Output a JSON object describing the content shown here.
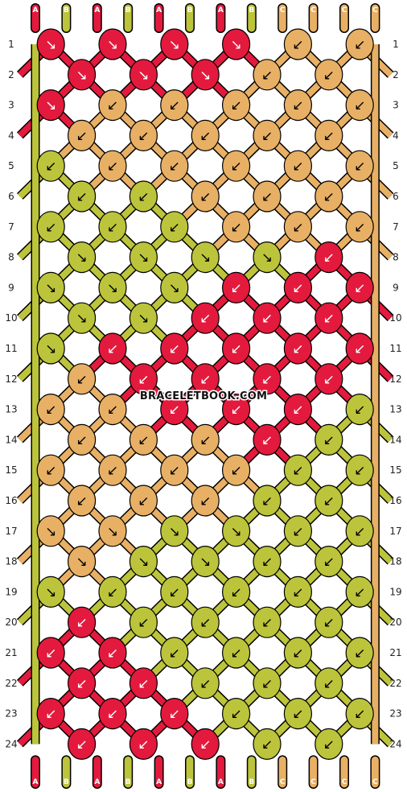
{
  "watermark": "BRACELETBOOK.COM",
  "colors": {
    "A": "#e31a3d",
    "B": "#bcc43b",
    "C": "#e8b065"
  },
  "top_strings": [
    "A",
    "B",
    "A",
    "B",
    "A",
    "B",
    "A",
    "B",
    "C",
    "C",
    "C",
    "C"
  ],
  "bottom_strings": [
    "A",
    "B",
    "A",
    "B",
    "A",
    "B",
    "A",
    "B",
    "C",
    "C",
    "C",
    "C"
  ],
  "row_numbers": [
    "1",
    "2",
    "3",
    "4",
    "5",
    "6",
    "7",
    "8",
    "9",
    "10",
    "11",
    "12",
    "13",
    "14",
    "15",
    "16",
    "17",
    "18",
    "19",
    "20",
    "21",
    "22",
    "23",
    "24"
  ],
  "knot_rows": [
    [
      "A",
      "A",
      "A",
      "A",
      "C",
      "C"
    ],
    [
      "A",
      "A",
      "A",
      "C",
      "C"
    ],
    [
      "A",
      "C",
      "C",
      "C",
      "C",
      "C"
    ],
    [
      "C",
      "C",
      "C",
      "C",
      "C"
    ],
    [
      "B",
      "C",
      "C",
      "C",
      "C",
      "C"
    ],
    [
      "B",
      "B",
      "C",
      "C",
      "C"
    ],
    [
      "B",
      "B",
      "B",
      "C",
      "C",
      "C"
    ],
    [
      "B",
      "B",
      "B",
      "B",
      "A"
    ],
    [
      "B",
      "B",
      "B",
      "A",
      "A",
      "A"
    ],
    [
      "B",
      "B",
      "A",
      "A",
      "A"
    ],
    [
      "B",
      "A",
      "A",
      "A",
      "A",
      "A"
    ],
    [
      "C",
      "A",
      "A",
      "A",
      "A"
    ],
    [
      "C",
      "C",
      "A",
      "A",
      "A",
      "B"
    ],
    [
      "C",
      "C",
      "C",
      "A",
      "B"
    ],
    [
      "C",
      "C",
      "C",
      "C",
      "B",
      "B"
    ],
    [
      "C",
      "C",
      "C",
      "B",
      "B"
    ],
    [
      "C",
      "C",
      "B",
      "B",
      "B",
      "B"
    ],
    [
      "C",
      "B",
      "B",
      "B",
      "B"
    ],
    [
      "B",
      "B",
      "B",
      "B",
      "B",
      "B"
    ],
    [
      "A",
      "B",
      "B",
      "B",
      "B"
    ],
    [
      "A",
      "A",
      "B",
      "B",
      "B",
      "B"
    ],
    [
      "A",
      "A",
      "B",
      "B",
      "B"
    ],
    [
      "A",
      "A",
      "A",
      "B",
      "B",
      "B"
    ],
    [
      "A",
      "A",
      "A",
      "B",
      "B"
    ]
  ],
  "knot_dirs": [
    [
      "↘",
      "↘",
      "↘",
      "↘",
      "↙",
      "↙"
    ],
    [
      "↘",
      "↘",
      "↘",
      "↙",
      "↙"
    ],
    [
      "↘",
      "↙",
      "↙",
      "↙",
      "↙",
      "↙"
    ],
    [
      "↙",
      "↙",
      "↙",
      "↙",
      "↙"
    ],
    [
      "↙",
      "↙",
      "↙",
      "↙",
      "↙",
      "↙"
    ],
    [
      "↙",
      "↙",
      "↙",
      "↙",
      "↙"
    ],
    [
      "↙",
      "↙",
      "↙",
      "↙",
      "↙",
      "↙"
    ],
    [
      "↘",
      "↘",
      "↘",
      "↘",
      "↙"
    ],
    [
      "↘",
      "↘",
      "↘",
      "↙",
      "↙",
      "↙"
    ],
    [
      "↘",
      "↘",
      "↙",
      "↙",
      "↙"
    ],
    [
      "↘",
      "↙",
      "↙",
      "↙",
      "↙",
      "↙"
    ],
    [
      "↙",
      "↙",
      "↙",
      "↙",
      "↙"
    ],
    [
      "↙",
      "↙",
      "↙",
      "↙",
      "↙",
      "↙"
    ],
    [
      "↙",
      "↙",
      "↙",
      "↙",
      "↙"
    ],
    [
      "↙",
      "↙",
      "↙",
      "↙",
      "↙",
      "↙"
    ],
    [
      "↙",
      "↙",
      "↙",
      "↙",
      "↙"
    ],
    [
      "↘",
      "↘",
      "↘",
      "↘",
      "↙",
      "↙"
    ],
    [
      "↘",
      "↘",
      "↘",
      "↙",
      "↙"
    ],
    [
      "↘",
      "↙",
      "↙",
      "↙",
      "↙",
      "↙"
    ],
    [
      "↙",
      "↙",
      "↙",
      "↙",
      "↙"
    ],
    [
      "↙",
      "↙",
      "↙",
      "↙",
      "↙",
      "↙"
    ],
    [
      "↙",
      "↙",
      "↙",
      "↙",
      "↙"
    ],
    [
      "↙",
      "↙",
      "↙",
      "↙",
      "↙",
      "↙"
    ],
    [
      "↙",
      "↙",
      "↙",
      "↙",
      "↙"
    ]
  ]
}
